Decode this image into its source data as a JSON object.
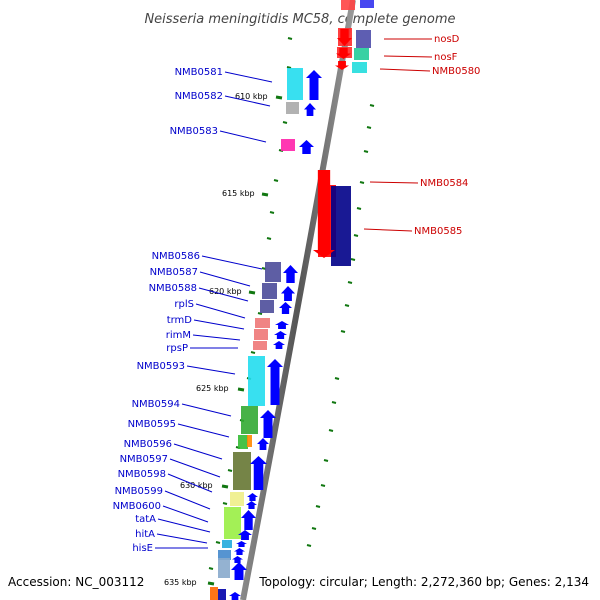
{
  "title": "Neisseria meningitidis MC58, complete genome",
  "footer": {
    "accession": "Accession: NC_003112",
    "topology": "Topology: circular; Length: 2,272,360 bp; Genes: 2,134"
  },
  "ticks": [
    {
      "label": "610 kbp"
    },
    {
      "label": "615 kbp"
    },
    {
      "label": "620 kbp"
    },
    {
      "label": "625 kbp"
    },
    {
      "label": "630 kbp"
    },
    {
      "label": "635 kbp"
    }
  ],
  "genes": {
    "reverse": [
      {
        "name": "nosD"
      },
      {
        "name": "nosF"
      },
      {
        "name": "NMB0580"
      },
      {
        "name": "NMB0584"
      },
      {
        "name": "NMB0585"
      }
    ],
    "forward": [
      {
        "name": "NMB0581"
      },
      {
        "name": "NMB0582"
      },
      {
        "name": "NMB0583"
      },
      {
        "name": "NMB0586"
      },
      {
        "name": "NMB0587"
      },
      {
        "name": "NMB0588"
      },
      {
        "name": "rplS"
      },
      {
        "name": "trmD"
      },
      {
        "name": "rimM"
      },
      {
        "name": "rpsP"
      },
      {
        "name": "NMB0593"
      },
      {
        "name": "NMB0594"
      },
      {
        "name": "NMB0595"
      },
      {
        "name": "NMB0596"
      },
      {
        "name": "NMB0597"
      },
      {
        "name": "NMB0598"
      },
      {
        "name": "NMB0599"
      },
      {
        "name": "NMB0600"
      },
      {
        "name": "tatA"
      },
      {
        "name": "hitA"
      },
      {
        "name": "hisE"
      }
    ]
  },
  "colors": {
    "forward_label": "#0000cc",
    "reverse_label": "#cc0000",
    "arrow_forward": "#0000ff",
    "arrow_reverse": "#ff0000",
    "tick": "#117711"
  }
}
